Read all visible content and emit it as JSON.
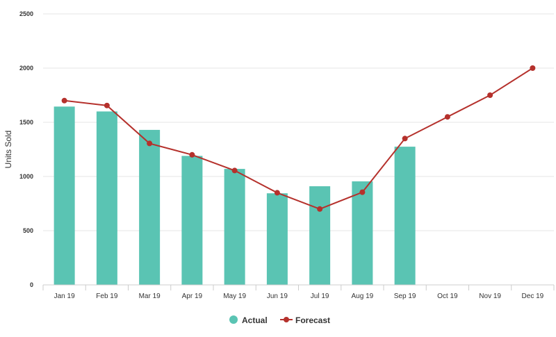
{
  "chart_data": {
    "type": "bar",
    "categories": [
      "Jan 19",
      "Feb 19",
      "Mar 19",
      "Apr 19",
      "May 19",
      "Jun 19",
      "Jul 19",
      "Aug 19",
      "Sep 19",
      "Oct 19",
      "Nov 19",
      "Dec 19"
    ],
    "series": [
      {
        "name": "Actual",
        "type": "bar",
        "color": "#5ac4b3",
        "values": [
          1645,
          1600,
          1430,
          1190,
          1070,
          845,
          910,
          955,
          1275,
          null,
          null,
          null
        ]
      },
      {
        "name": "Forecast",
        "type": "line",
        "color": "#b5312c",
        "values": [
          1700,
          1655,
          1305,
          1200,
          1055,
          850,
          700,
          855,
          1350,
          1550,
          1750,
          2000
        ]
      }
    ],
    "yticks": [
      "0",
      "500",
      "1000",
      "1500",
      "2000",
      "2500"
    ],
    "ylabel": "Units Sold",
    "xlabel": "",
    "ylim": [
      0,
      2500
    ],
    "grid": true,
    "legend": "bottom-center"
  }
}
